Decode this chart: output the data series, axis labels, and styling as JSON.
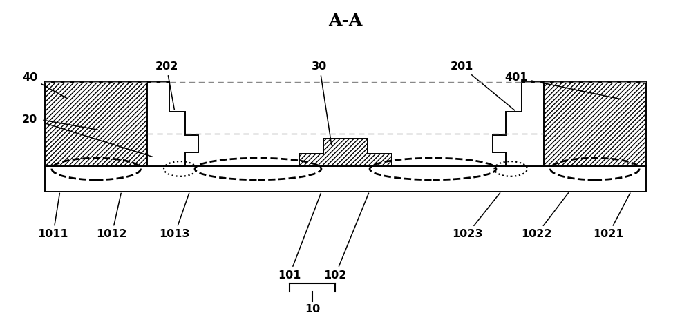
{
  "title": "A-A",
  "title_fontsize": 18,
  "bg_color": "#ffffff",
  "line_color": "#000000",
  "label_fontsize": 11.5,
  "figsize": [
    10,
    4.83
  ],
  "dpi": 100
}
